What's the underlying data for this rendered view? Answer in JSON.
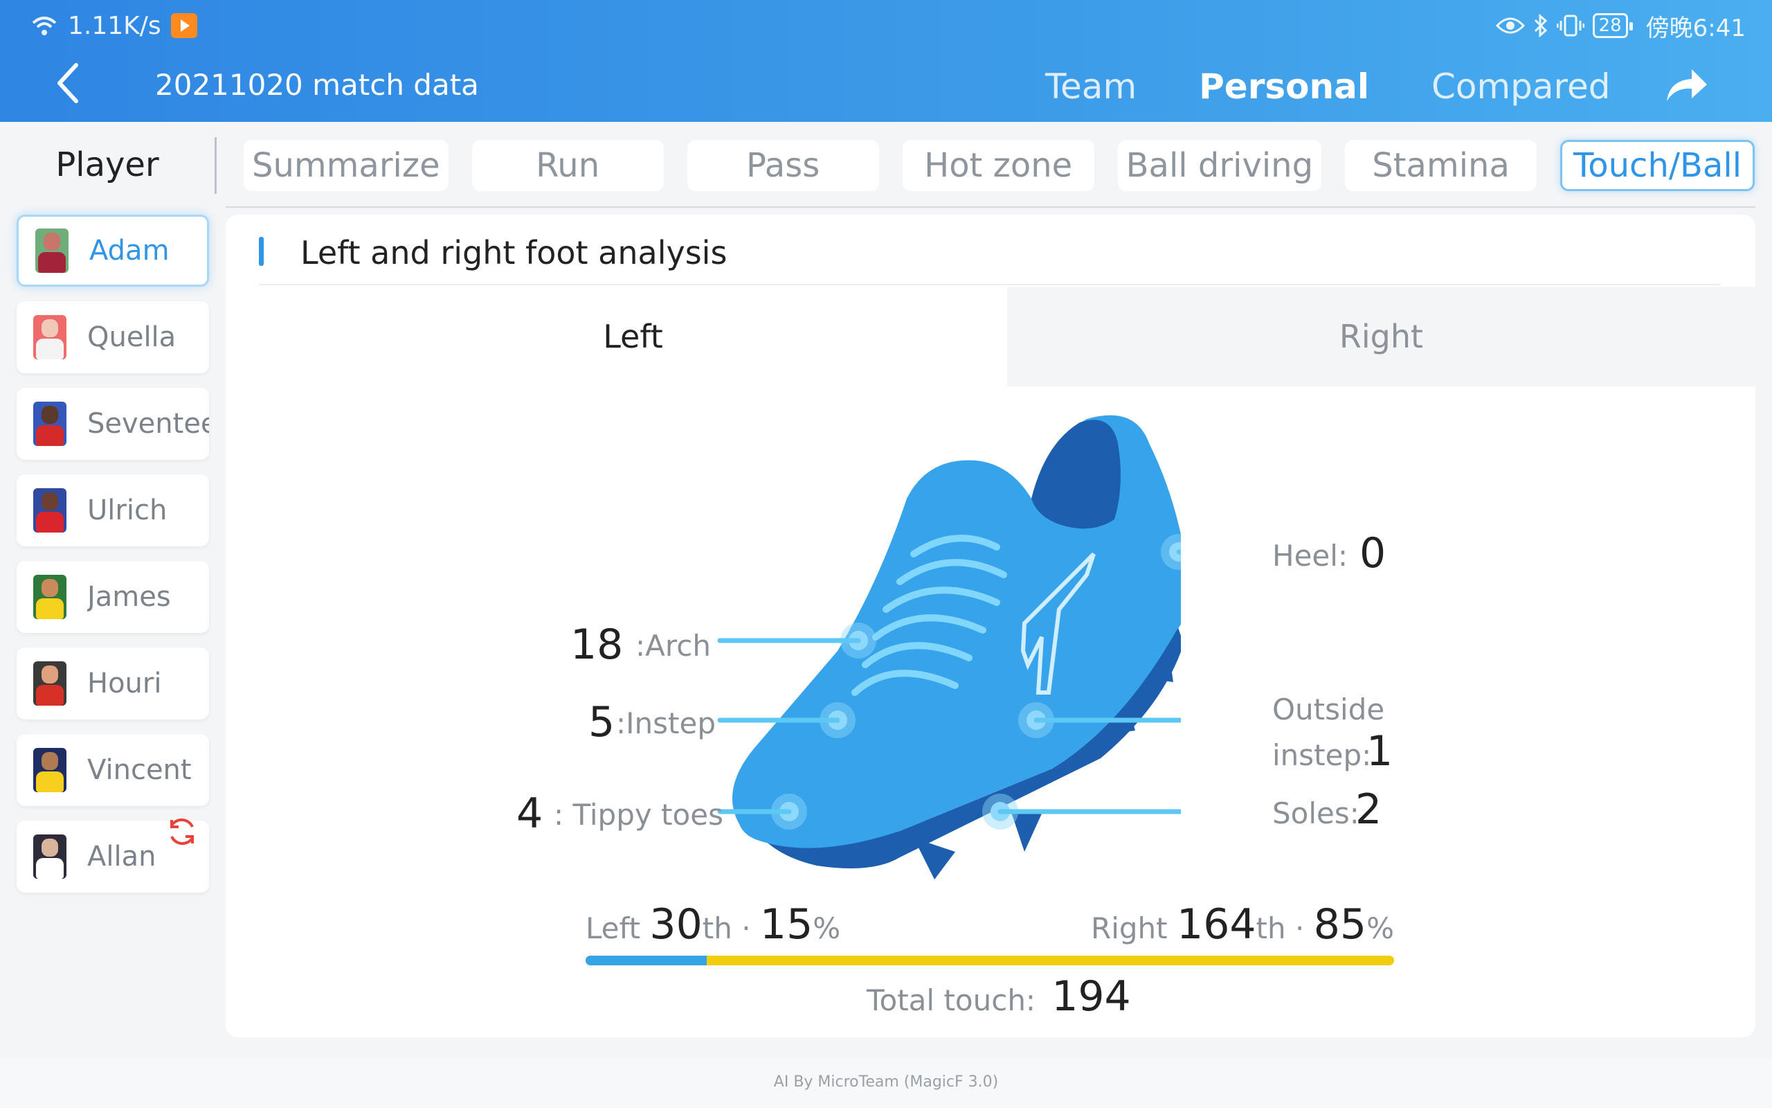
{
  "status": {
    "network_speed": "1.11K/s",
    "battery": "28",
    "time": "傍晚6:41"
  },
  "header": {
    "title": "20211020 match data",
    "tabs": [
      {
        "label": "Team"
      },
      {
        "label": "Personal"
      },
      {
        "label": "Compared"
      }
    ],
    "active_tab": "Personal"
  },
  "subnav": {
    "player_label": "Player",
    "tabs": [
      {
        "label": "Summarize"
      },
      {
        "label": "Run"
      },
      {
        "label": "Pass"
      },
      {
        "label": "Hot zone"
      },
      {
        "label": "Ball driving"
      },
      {
        "label": "Stamina"
      },
      {
        "label": "Touch/Ball"
      }
    ],
    "active_tab": "Touch/Ball"
  },
  "players": [
    {
      "name": "Adam",
      "face": "#c8756a",
      "shirt": "#a3233a",
      "bg": "#6fae7a"
    },
    {
      "name": "Quella",
      "face": "#f2c9b8",
      "shirt": "#f3f3f3",
      "bg": "#ef6a6a"
    },
    {
      "name": "Seventee",
      "face": "#5b3a2c",
      "shirt": "#d42a2a",
      "bg": "#3557b7"
    },
    {
      "name": "Ulrich",
      "face": "#6b4030",
      "shirt": "#d8262c",
      "bg": "#2f4aa0"
    },
    {
      "name": "James",
      "face": "#c98b5c",
      "shirt": "#f4d21d",
      "bg": "#2f7a3a"
    },
    {
      "name": "Houri",
      "face": "#e0a27e",
      "shirt": "#d63027",
      "bg": "#3a3a3a"
    },
    {
      "name": "Vincent",
      "face": "#b07a52",
      "shirt": "#f7cf1e",
      "bg": "#1f2d63"
    },
    {
      "name": "Allan",
      "face": "#d9b59b",
      "shirt": "#ffffff",
      "bg": "#2c2c3a"
    }
  ],
  "active_player": "Adam",
  "section": {
    "title": "Left and right foot analysis",
    "foot_tabs": {
      "left": "Left",
      "right": "Right"
    }
  },
  "touch_points": {
    "arch": {
      "label": ":Arch",
      "value": "18"
    },
    "instep": {
      "label": ":Instep",
      "value": "5"
    },
    "tippy_toes": {
      "label": ": Tippy toes",
      "value": "4"
    },
    "heel": {
      "label": "Heel:",
      "value": "0"
    },
    "outside_instep": {
      "label_line1": "Outside",
      "label_line2": "instep:",
      "value": "1"
    },
    "soles": {
      "label": "Soles:",
      "value": "2"
    }
  },
  "ratio": {
    "left_label": "Left",
    "left_count": "30",
    "right_label": "Right",
    "right_count": "164",
    "suffix": "th",
    "sep": "·",
    "left_percent": "15",
    "right_percent": "85",
    "percent_sign": "%",
    "left_fraction": 0.15
  },
  "total": {
    "label": "Total touch:",
    "value": "194"
  },
  "footer": {
    "text": "AI By MicroTeam (MagicF 3.0)"
  },
  "colors": {
    "accent": "#2f95e6",
    "left_bar": "#35a4e6",
    "right_bar": "#f0ce0d",
    "shoe": "#37a3ea",
    "shoe_dark": "#1d5fae"
  }
}
